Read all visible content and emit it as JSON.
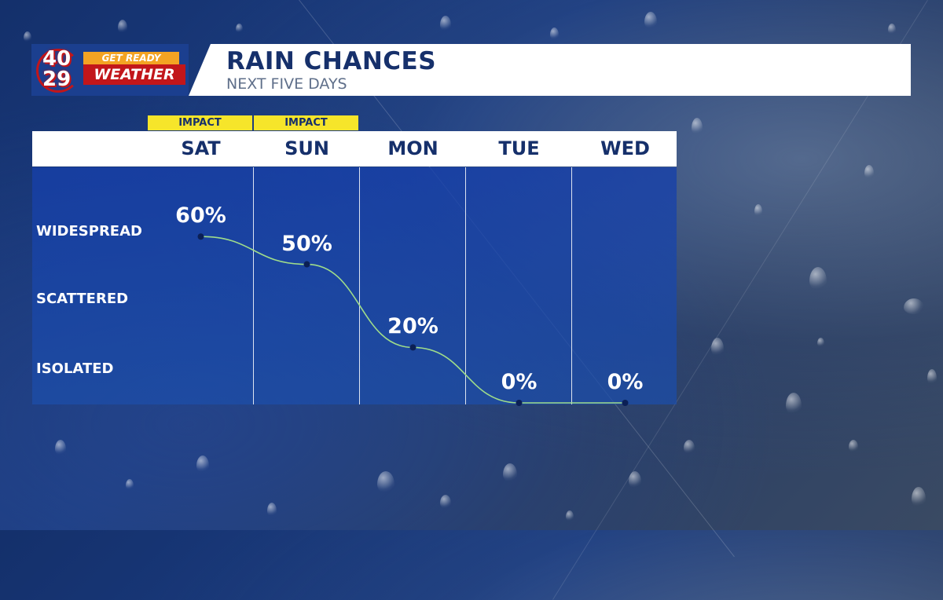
{
  "header": {
    "logo_number_top": "40",
    "logo_number_bottom": "29",
    "logo_tag": "GET READY",
    "logo_brand": "WEATHER",
    "title": "RAIN CHANCES",
    "subtitle": "NEXT FIVE DAYS"
  },
  "colors": {
    "navy_text": "#16306b",
    "impact_yellow": "#f6e52a",
    "curve_green": "#9fdc8a",
    "logo_red": "#c2161a",
    "logo_orange": "#f3a323"
  },
  "chart_data": {
    "type": "line",
    "categories": [
      "SAT",
      "SUN",
      "MON",
      "TUE",
      "WED"
    ],
    "values": [
      60,
      50,
      20,
      0,
      0
    ],
    "value_labels": [
      "60%",
      "50%",
      "20%",
      "0%",
      "0%"
    ],
    "impact_labels": [
      "IMPACT",
      "IMPACT",
      "",
      "",
      ""
    ],
    "y_levels": [
      "WIDESPREAD",
      "SCATTERED",
      "ISOLATED"
    ],
    "ylim": [
      0,
      100
    ],
    "grid": "vertical"
  }
}
